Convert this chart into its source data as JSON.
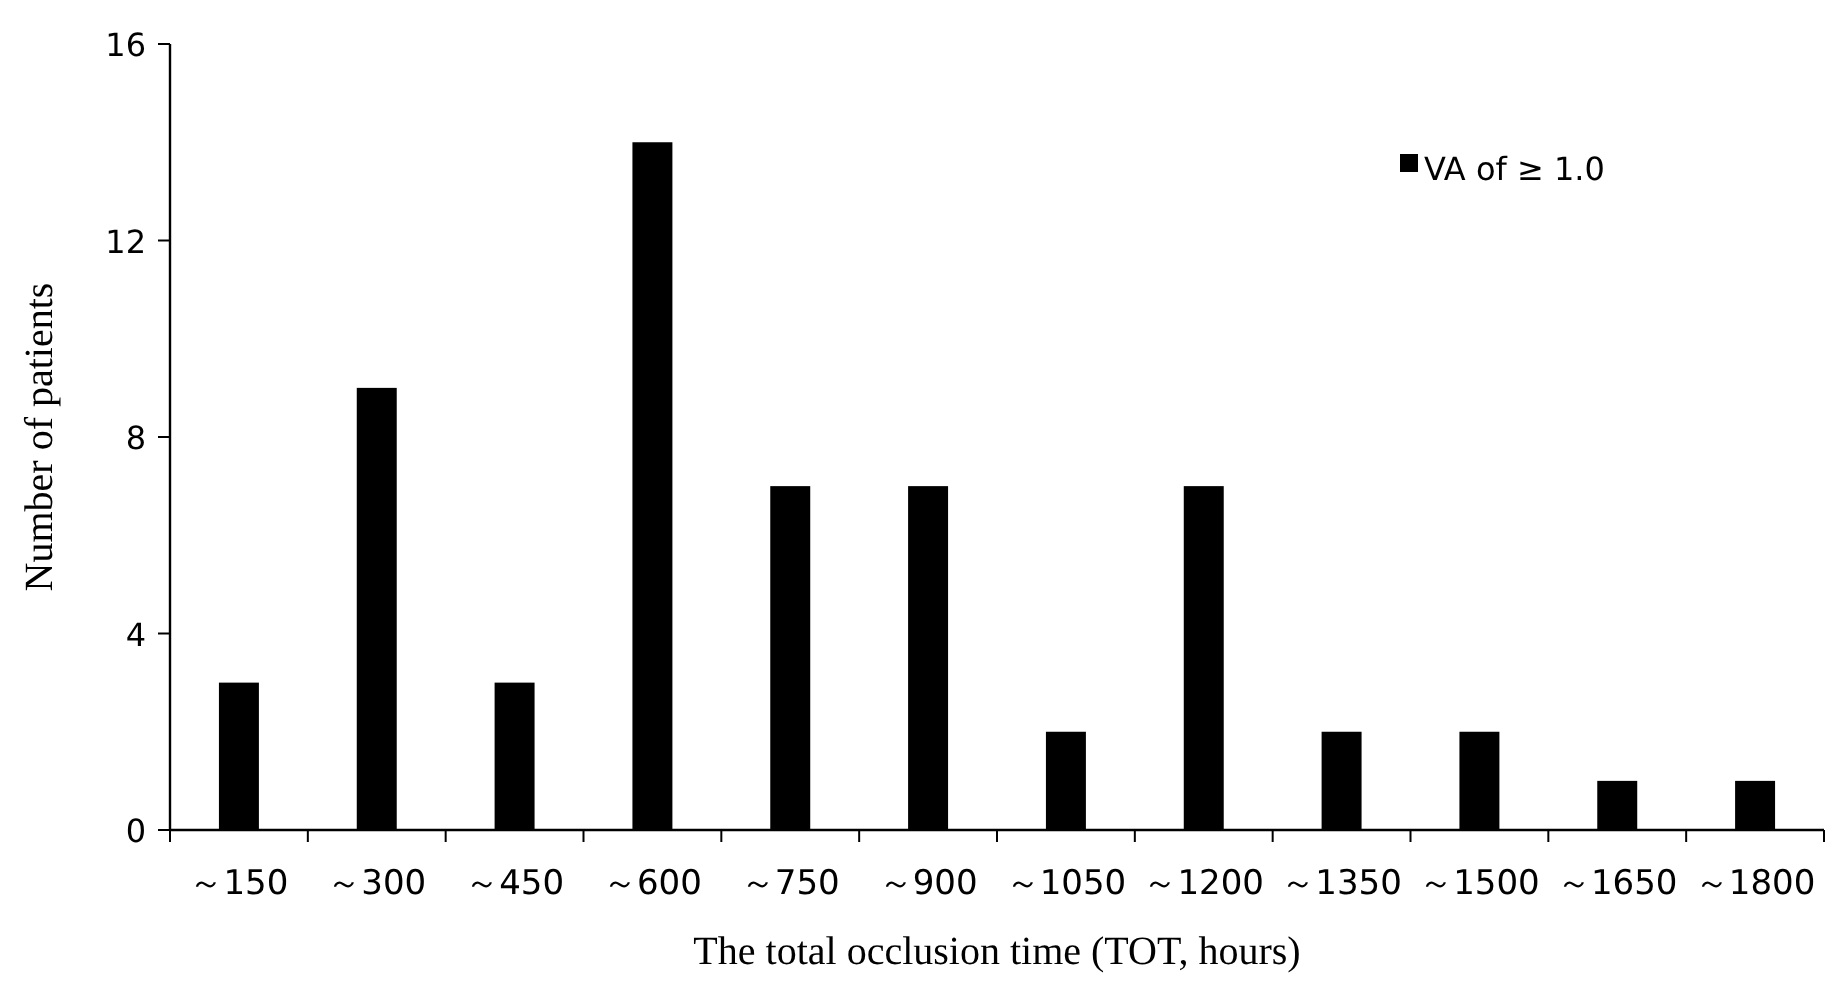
{
  "chart_data": {
    "type": "bar",
    "categories": [
      "～150",
      "～300",
      "～450",
      "～600",
      "～750",
      "～900",
      "～1050",
      "～1200",
      "～1350",
      "～1500",
      "～1650",
      "～1800"
    ],
    "series": [
      {
        "name": "VA of ≥ 1.0",
        "color": "#000000",
        "values": [
          3,
          9,
          3,
          14,
          7,
          7,
          2,
          7,
          2,
          2,
          1,
          1
        ]
      }
    ],
    "xlabel": "The total occlusion time (TOT, hours)",
    "ylabel": "Number of patients",
    "ylim": [
      0,
      16
    ],
    "yticks": [
      0,
      4,
      8,
      12,
      16
    ],
    "grid": false,
    "legend": "top right"
  }
}
